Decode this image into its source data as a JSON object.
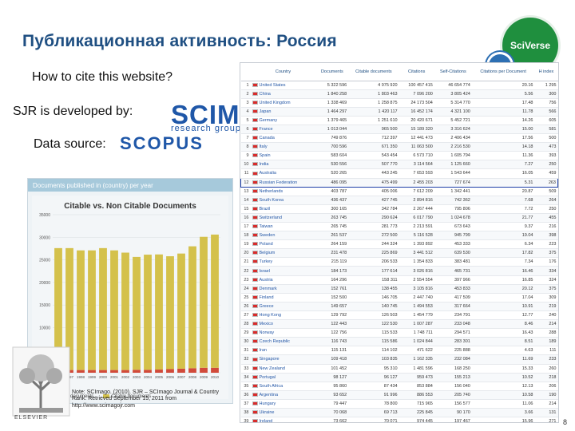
{
  "slide": {
    "title": "Публикационная активность: Россия",
    "cite_text": "How to cite this website?",
    "sjr_text": "SJR is developed by:",
    "data_source_text": "Data source:",
    "note": "Note: SCImago. (2010). SJR – SCImago Journal & Country Rank. Retrieved September 15, 2011 from http://www.scimagojr.com",
    "page_number": "8"
  },
  "logos": {
    "sciverse": "SciVerse",
    "scimago": "SCIMAGO",
    "scimago_sub": "research group",
    "scopus": "SCOPUS",
    "elsevier": "ELSEVIER"
  },
  "chart_header": "Documents published in (country) per year",
  "chart_data": {
    "type": "bar",
    "title": "Citable vs. Non Citable Documents",
    "categories": [
      "1996",
      "1997",
      "1998",
      "1999",
      "2000",
      "2001",
      "2002",
      "2003",
      "2004",
      "2005",
      "2006",
      "2007",
      "2008",
      "2009",
      "2010"
    ],
    "series": [
      {
        "name": "Non-citable documents",
        "color": "#d14a3a",
        "values": [
          600,
          600,
          600,
          600,
          600,
          600,
          600,
          650,
          650,
          700,
          800,
          900,
          1000,
          1100,
          1100
        ]
      },
      {
        "name": "Citable documents",
        "color": "#d4c14b",
        "values": [
          27000,
          27000,
          26500,
          26500,
          27000,
          26500,
          26000,
          25000,
          25500,
          25500,
          25000,
          25500,
          27000,
          29000,
          29500
        ]
      }
    ],
    "ylim": [
      0,
      35000
    ],
    "yticks": [
      "35000",
      "30000",
      "25000",
      "20000",
      "15000",
      "10000",
      "5000",
      "0"
    ]
  },
  "table": {
    "columns": [
      "Country",
      "Documents",
      "Citable documents",
      "Citations",
      "Self-Citations",
      "Citations per Document",
      "H index"
    ],
    "rows": [
      {
        "n": "1",
        "country": "United States",
        "c1": "5 322 596",
        "c2": "4 975 920",
        "c3": "100 457 415",
        "c4": "46 654 774",
        "c5": "20.16",
        "c6": "1 295"
      },
      {
        "n": "2",
        "country": "China",
        "c1": "1 840 258",
        "c2": "1 803 463",
        "c3": "7 096 200",
        "c4": "3 805 424",
        "c5": "5.56",
        "c6": "300"
      },
      {
        "n": "3",
        "country": "United Kingdom",
        "c1": "1 338 469",
        "c2": "1 258 875",
        "c3": "24 173 504",
        "c4": "5 314 770",
        "c5": "17.48",
        "c6": "756"
      },
      {
        "n": "4",
        "country": "Japan",
        "c1": "1 464 297",
        "c2": "1 420 117",
        "c3": "16 452 174",
        "c4": "4 321 100",
        "c5": "11.78",
        "c6": "566"
      },
      {
        "n": "5",
        "country": "Germany",
        "c1": "1 379 465",
        "c2": "1 251 610",
        "c3": "20 420 671",
        "c4": "5 452 721",
        "c5": "14.26",
        "c6": "605"
      },
      {
        "n": "6",
        "country": "France",
        "c1": "1 013 044",
        "c2": "965 500",
        "c3": "15 189 320",
        "c4": "3 316 624",
        "c5": "15.00",
        "c6": "581"
      },
      {
        "n": "7",
        "country": "Canada",
        "c1": "749 876",
        "c2": "712 397",
        "c3": "12 441 473",
        "c4": "2 406 434",
        "c5": "17.56",
        "c6": "500"
      },
      {
        "n": "8",
        "country": "Italy",
        "c1": "700 596",
        "c2": "671 350",
        "c3": "11 063 500",
        "c4": "2 216 530",
        "c5": "14.18",
        "c6": "473"
      },
      {
        "n": "9",
        "country": "Spain",
        "c1": "583 604",
        "c2": "543 454",
        "c3": "6 573 710",
        "c4": "1 605 794",
        "c5": "11.36",
        "c6": "393"
      },
      {
        "n": "10",
        "country": "India",
        "c1": "530 556",
        "c2": "507 770",
        "c3": "3 114 564",
        "c4": "1 125 660",
        "c5": "7.27",
        "c6": "250"
      },
      {
        "n": "11",
        "country": "Australia",
        "c1": "520 265",
        "c2": "443 245",
        "c3": "7 653 593",
        "c4": "1 543 644",
        "c5": "16.05",
        "c6": "459"
      },
      {
        "n": "12",
        "country": "Russian Federation",
        "c1": "486 095",
        "c2": "475 499",
        "c3": "2 455 203",
        "c4": "727 674",
        "c5": "5.31",
        "c6": "263"
      },
      {
        "n": "13",
        "country": "Netherlands",
        "c1": "403 787",
        "c2": "405 006",
        "c3": "7 612 209",
        "c4": "1 342 441",
        "c5": "20.87",
        "c6": "509"
      },
      {
        "n": "14",
        "country": "South Korea",
        "c1": "436 437",
        "c2": "427 745",
        "c3": "2 894 816",
        "c4": "742 362",
        "c5": "7.68",
        "c6": "264"
      },
      {
        "n": "15",
        "country": "Brazil",
        "c1": "300 165",
        "c2": "342 784",
        "c3": "2 267 444",
        "c4": "795 806",
        "c5": "7.72",
        "c6": "250"
      },
      {
        "n": "16",
        "country": "Switzerland",
        "c1": "263 745",
        "c2": "290 624",
        "c3": "6 017 790",
        "c4": "1 024 678",
        "c5": "21.77",
        "c6": "455"
      },
      {
        "n": "17",
        "country": "Taiwan",
        "c1": "265 745",
        "c2": "281 773",
        "c3": "2 213 591",
        "c4": "673 643",
        "c5": "9.37",
        "c6": "216"
      },
      {
        "n": "18",
        "country": "Sweden",
        "c1": "261 537",
        "c2": "272 500",
        "c3": "5 116 528",
        "c4": "945 799",
        "c5": "19.04",
        "c6": "398"
      },
      {
        "n": "19",
        "country": "Poland",
        "c1": "264 159",
        "c2": "244 324",
        "c3": "1 393 892",
        "c4": "453 333",
        "c5": "6.34",
        "c6": "223"
      },
      {
        "n": "20",
        "country": "Belgium",
        "c1": "231 478",
        "c2": "225 869",
        "c3": "3 441 512",
        "c4": "639 530",
        "c5": "17.82",
        "c6": "375"
      },
      {
        "n": "21",
        "country": "Turkey",
        "c1": "215 119",
        "c2": "206 533",
        "c3": "1 354 833",
        "c4": "383 481",
        "c5": "7.34",
        "c6": "176"
      },
      {
        "n": "22",
        "country": "Israel",
        "c1": "184 173",
        "c2": "177 614",
        "c3": "3 026 816",
        "c4": "465 731",
        "c5": "16.46",
        "c6": "334"
      },
      {
        "n": "23",
        "country": "Austria",
        "c1": "164 296",
        "c2": "158 311",
        "c3": "2 554 554",
        "c4": "397 966",
        "c5": "16.85",
        "c6": "324"
      },
      {
        "n": "24",
        "country": "Denmark",
        "c1": "152 761",
        "c2": "138 455",
        "c3": "3 105 816",
        "c4": "453 833",
        "c5": "20.12",
        "c6": "375"
      },
      {
        "n": "25",
        "country": "Finland",
        "c1": "152 500",
        "c2": "146 705",
        "c3": "2 447 740",
        "c4": "417 509",
        "c5": "17.04",
        "c6": "309"
      },
      {
        "n": "26",
        "country": "Greece",
        "c1": "149 657",
        "c2": "140 745",
        "c3": "1 494 553",
        "c4": "317 664",
        "c5": "10.91",
        "c6": "219"
      },
      {
        "n": "27",
        "country": "Hong Kong",
        "c1": "129 792",
        "c2": "126 503",
        "c3": "1 454 779",
        "c4": "234 791",
        "c5": "12.77",
        "c6": "240"
      },
      {
        "n": "28",
        "country": "Mexico",
        "c1": "122 443",
        "c2": "122 530",
        "c3": "1 007 287",
        "c4": "233 048",
        "c5": "8.46",
        "c6": "214"
      },
      {
        "n": "29",
        "country": "Norway",
        "c1": "122 756",
        "c2": "115 533",
        "c3": "1 748 711",
        "c4": "294 571",
        "c5": "16.43",
        "c6": "288"
      },
      {
        "n": "30",
        "country": "Czech Republic",
        "c1": "116 743",
        "c2": "115 586",
        "c3": "1 024 844",
        "c4": "283 301",
        "c5": "8.51",
        "c6": "189"
      },
      {
        "n": "31",
        "country": "Iran",
        "c1": "115 131",
        "c2": "114 102",
        "c3": "471 622",
        "c4": "225 888",
        "c5": "4.63",
        "c6": "111"
      },
      {
        "n": "32",
        "country": "Singapore",
        "c1": "109 418",
        "c2": "103 835",
        "c3": "1 162 335",
        "c4": "232 084",
        "c5": "11.69",
        "c6": "233"
      },
      {
        "n": "33",
        "country": "New Zealand",
        "c1": "101 452",
        "c2": "95 310",
        "c3": "1 481 596",
        "c4": "168 250",
        "c5": "15.33",
        "c6": "260"
      },
      {
        "n": "34",
        "country": "Portugal",
        "c1": "98 127",
        "c2": "96 127",
        "c3": "959 473",
        "c4": "155 213",
        "c5": "10.52",
        "c6": "218"
      },
      {
        "n": "35",
        "country": "South Africa",
        "c1": "95 860",
        "c2": "87 434",
        "c3": "853 884",
        "c4": "156 040",
        "c5": "12.13",
        "c6": "206"
      },
      {
        "n": "36",
        "country": "Argentina",
        "c1": "93 652",
        "c2": "91 996",
        "c3": "886 553",
        "c4": "205 740",
        "c5": "10.58",
        "c6": "190"
      },
      {
        "n": "37",
        "country": "Hungary",
        "c1": "79 447",
        "c2": "78 800",
        "c3": "715 965",
        "c4": "156 577",
        "c5": "11.06",
        "c6": "214"
      },
      {
        "n": "38",
        "country": "Ukraine",
        "c1": "70 068",
        "c2": "69 713",
        "c3": "225 845",
        "c4": "90 170",
        "c5": "3.66",
        "c6": "131"
      },
      {
        "n": "39",
        "country": "Ireland",
        "c1": "73 662",
        "c2": "70 071",
        "c3": "974 445",
        "c4": "197 467",
        "c5": "15.96",
        "c6": "271"
      },
      {
        "n": "40",
        "country": "Egypt",
        "c1": "64 547",
        "c2": "61 491",
        "c3": "372 511",
        "c4": "88 543",
        "c5": "6.56",
        "c6": "127"
      }
    ],
    "highlight_index": 11
  }
}
